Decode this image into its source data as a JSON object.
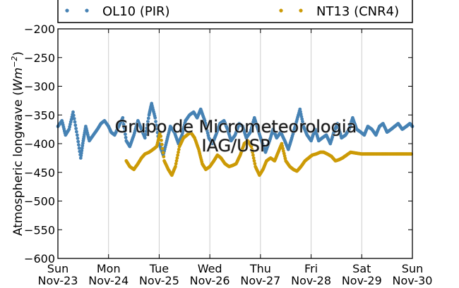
{
  "chart_data": {
    "type": "scatter",
    "title": "",
    "xlabel": "",
    "ylabel": "Atmospheric longwave (Wm^-2)",
    "ylabel_parts": {
      "text": "Atmospheric longwave (",
      "unit": "Wm",
      "exp": "−2",
      "close": ")"
    },
    "ylim": [
      -600,
      -200
    ],
    "yticks": [
      "−200",
      "−250",
      "−300",
      "−350",
      "−400",
      "−450",
      "−500",
      "−550",
      "−600"
    ],
    "ytick_values": [
      -200,
      -250,
      -300,
      -350,
      -400,
      -450,
      -500,
      -550,
      -600
    ],
    "xlim": [
      "2014-11-23",
      "2014-11-30"
    ],
    "xticks": [
      {
        "day": "Sun",
        "date": "Nov-23"
      },
      {
        "day": "Mon",
        "date": "Nov-24"
      },
      {
        "day": "Tue",
        "date": "Nov-25"
      },
      {
        "day": "Wed",
        "date": "Nov-26"
      },
      {
        "day": "Thu",
        "date": "Nov-27"
      },
      {
        "day": "Fri",
        "date": "Nov-28"
      },
      {
        "day": "Sat",
        "date": "Nov-29"
      },
      {
        "day": "Sun",
        "date": "Nov-30"
      }
    ],
    "grid": "vertical",
    "legend_position": "top",
    "watermark": [
      "Grupo de Micrometeorologia",
      "IAG/USP"
    ],
    "series": [
      {
        "name": "OL10 (PIR)",
        "color": "#4682b4",
        "x": [
          0,
          0.08,
          0.15,
          0.22,
          0.3,
          0.38,
          0.45,
          0.5,
          0.55,
          0.62,
          0.7,
          0.78,
          0.85,
          0.92,
          1.0,
          1.05,
          1.12,
          1.2,
          1.28,
          1.35,
          1.42,
          1.5,
          1.58,
          1.65,
          1.72,
          1.8,
          1.85,
          1.92,
          2.0,
          2.08,
          2.15,
          2.22,
          2.3,
          2.38,
          2.45,
          2.52,
          2.6,
          2.68,
          2.75,
          2.82,
          2.9,
          2.98,
          3.05,
          3.12,
          3.2,
          3.28,
          3.35,
          3.42,
          3.5,
          3.58,
          3.65,
          3.72,
          3.8,
          3.88,
          3.95,
          4.02,
          4.1,
          4.18,
          4.25,
          4.32,
          4.4,
          4.48,
          4.55,
          4.62,
          4.7,
          4.78,
          4.85,
          4.92,
          5.0,
          5.08,
          5.15,
          5.22,
          5.3,
          5.38,
          5.45,
          5.52,
          5.6,
          5.68,
          5.75,
          5.82,
          5.9,
          5.98,
          6.05,
          6.12,
          6.2,
          6.28,
          6.35,
          6.42,
          6.5,
          6.58,
          6.65,
          6.72,
          6.8,
          6.88,
          6.95,
          7.0
        ],
        "y": [
          -370,
          -360,
          -385,
          -375,
          -345,
          -385,
          -425,
          -395,
          -370,
          -395,
          -385,
          -375,
          -365,
          -360,
          -370,
          -380,
          -385,
          -370,
          -355,
          -395,
          -405,
          -385,
          -360,
          -375,
          -390,
          -350,
          -330,
          -355,
          -400,
          -420,
          -395,
          -370,
          -380,
          -400,
          -385,
          -360,
          -350,
          -345,
          -355,
          -340,
          -360,
          -390,
          -400,
          -385,
          -365,
          -360,
          -375,
          -395,
          -385,
          -365,
          -370,
          -390,
          -380,
          -355,
          -375,
          -395,
          -415,
          -395,
          -375,
          -390,
          -380,
          -395,
          -410,
          -390,
          -365,
          -340,
          -370,
          -385,
          -395,
          -375,
          -395,
          -390,
          -385,
          -400,
          -380,
          -365,
          -390,
          -385,
          -375,
          -355,
          -375,
          -380,
          -385,
          -370,
          -375,
          -385,
          -370,
          -365,
          -380,
          -375,
          -370,
          -365,
          -375,
          -370,
          -365,
          -370
        ]
      },
      {
        "name": "NT13 (CNR4)",
        "color": "#cc9a06",
        "x": [
          1.35,
          1.42,
          1.5,
          1.58,
          1.65,
          1.72,
          1.8,
          1.88,
          1.95,
          2.02,
          2.1,
          2.18,
          2.25,
          2.32,
          2.4,
          2.48,
          2.55,
          2.62,
          2.7,
          2.78,
          2.85,
          2.92,
          3.0,
          3.08,
          3.15,
          3.22,
          3.3,
          3.38,
          3.45,
          3.52,
          3.6,
          3.68,
          3.75,
          3.82,
          3.9,
          3.98,
          4.05,
          4.12,
          4.2,
          4.28,
          4.35,
          4.42,
          4.5,
          4.58,
          4.65,
          4.72,
          4.8,
          4.88,
          4.95,
          5.02,
          5.1,
          5.18,
          5.25,
          5.32,
          5.4,
          5.48,
          5.55,
          5.62,
          5.7,
          5.78,
          5.85,
          5.92,
          6.0,
          6.08,
          6.15,
          6.22,
          6.3,
          6.38,
          6.45,
          6.52,
          6.6,
          6.68,
          6.75,
          6.82,
          6.9,
          6.98
        ],
        "y": [
          -430,
          -440,
          -445,
          -435,
          -425,
          -418,
          -415,
          -410,
          -405,
          -380,
          -430,
          -445,
          -455,
          -440,
          -405,
          -390,
          -385,
          -380,
          -390,
          -410,
          -435,
          -445,
          -440,
          -430,
          -420,
          -425,
          -435,
          -440,
          -438,
          -435,
          -420,
          -400,
          -395,
          -405,
          -440,
          -455,
          -445,
          -430,
          -425,
          -430,
          -415,
          -400,
          -430,
          -440,
          -445,
          -448,
          -440,
          -430,
          -425,
          -420,
          -418,
          -415,
          -415,
          -418,
          -422,
          -430,
          -428,
          -425,
          -420,
          -415,
          -416,
          -417,
          -418,
          -418,
          -418,
          -418,
          -418,
          -418,
          -418,
          -418,
          -418,
          -418,
          -418,
          -418,
          -418,
          -418
        ]
      }
    ]
  }
}
